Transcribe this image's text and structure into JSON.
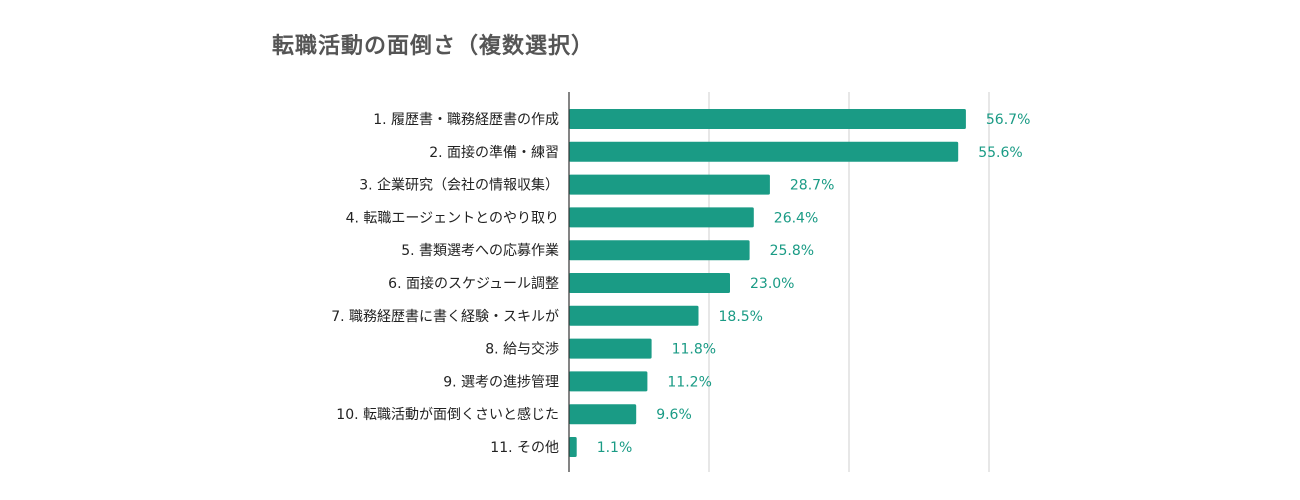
{
  "colors": {
    "bar": "#1a9b85",
    "value_label": "#1a9b85",
    "grid": "#cfcfcf",
    "axis": "#333333",
    "category_label": "#222222",
    "title": "#555555"
  },
  "chart_data": {
    "type": "bar",
    "orientation": "horizontal",
    "title": "転職活動の面倒さ（複数選択）",
    "xlabel": "",
    "ylabel": "",
    "unit": "%",
    "xlim": [
      0,
      60
    ],
    "grid": true,
    "gridlines": [
      20,
      40,
      60
    ],
    "legend": "none",
    "categories": [
      "1. 履歴書・職務経歴書の作成",
      "2. 面接の準備・練習",
      "3. 企業研究（会社の情報収集）",
      "4. 転職エージェントとのやり取り",
      "5. 書類選考への応募作業",
      "6. 面接のスケジュール調整",
      "7. 職務経歴書に書く経験・スキルが",
      "8. 給与交渉",
      "9. 選考の進捗管理",
      "10. 転職活動が面倒くさいと感じた",
      "11. その他"
    ],
    "values": [
      56.7,
      55.6,
      28.7,
      26.4,
      25.8,
      23.0,
      18.5,
      11.8,
      11.2,
      9.6,
      1.1
    ],
    "value_labels": [
      "56.7%",
      "55.6%",
      "28.7%",
      "26.4%",
      "25.8%",
      "23.0%",
      "18.5%",
      "11.8%",
      "11.2%",
      "9.6%",
      "1.1%"
    ]
  }
}
